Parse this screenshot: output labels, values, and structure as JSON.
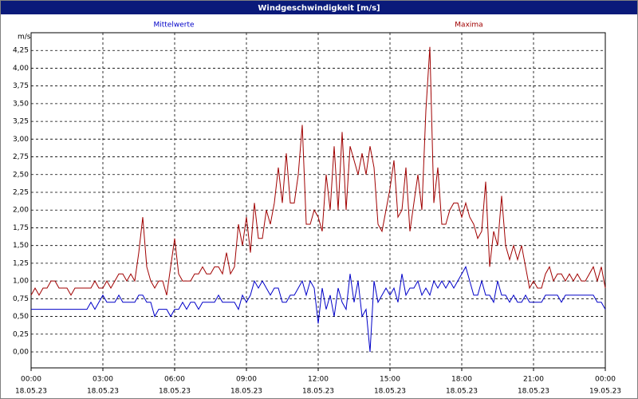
{
  "chart_data": {
    "type": "line",
    "title": "Windgeschwindigkeit [m/s]",
    "ylabel": "m/s",
    "x": [
      0,
      10,
      20,
      30,
      40,
      50,
      60,
      70,
      80,
      90,
      100,
      110,
      120,
      130,
      140,
      150,
      160,
      170,
      180,
      190,
      200,
      210,
      220,
      230,
      240,
      250,
      260,
      270,
      280,
      290,
      300,
      310,
      320,
      330,
      340,
      350,
      360,
      370,
      380,
      390,
      400,
      410,
      420,
      430,
      440,
      450,
      460,
      470,
      480,
      490,
      500,
      510,
      520,
      530,
      540,
      550,
      560,
      570,
      580,
      590,
      600,
      610,
      620,
      630,
      640,
      650,
      660,
      670,
      680,
      690,
      700,
      710,
      720,
      730,
      740,
      750,
      760,
      770,
      780,
      790,
      800,
      810,
      820,
      830,
      840,
      850,
      860,
      870,
      880,
      890,
      900,
      910,
      920,
      930,
      940,
      950,
      960,
      970,
      980,
      990,
      1000,
      1010,
      1020,
      1030,
      1040,
      1050,
      1060,
      1070,
      1080,
      1090,
      1100,
      1110,
      1120,
      1130,
      1140,
      1150,
      1160,
      1170,
      1180,
      1190,
      1200,
      1210,
      1220,
      1230,
      1240,
      1250,
      1260,
      1270,
      1280,
      1290,
      1300,
      1310,
      1320,
      1330,
      1340,
      1350,
      1360,
      1370,
      1380,
      1390,
      1400,
      1410,
      1420,
      1430,
      1440
    ],
    "series": [
      {
        "name": "Mittelwerte",
        "color": "#0000c8",
        "values": [
          0.6,
          0.6,
          0.6,
          0.6,
          0.6,
          0.6,
          0.6,
          0.6,
          0.6,
          0.6,
          0.6,
          0.6,
          0.6,
          0.6,
          0.6,
          0.7,
          0.6,
          0.7,
          0.8,
          0.7,
          0.7,
          0.7,
          0.8,
          0.7,
          0.7,
          0.7,
          0.7,
          0.8,
          0.8,
          0.7,
          0.7,
          0.5,
          0.6,
          0.6,
          0.6,
          0.5,
          0.6,
          0.6,
          0.7,
          0.6,
          0.7,
          0.7,
          0.6,
          0.7,
          0.7,
          0.7,
          0.7,
          0.8,
          0.7,
          0.7,
          0.7,
          0.7,
          0.6,
          0.8,
          0.7,
          0.8,
          1.0,
          0.9,
          1.0,
          0.9,
          0.8,
          0.9,
          0.9,
          0.7,
          0.7,
          0.8,
          0.8,
          0.9,
          1.0,
          0.8,
          1.0,
          0.9,
          0.4,
          0.9,
          0.6,
          0.8,
          0.5,
          0.9,
          0.7,
          0.6,
          1.1,
          0.7,
          1.0,
          0.5,
          0.6,
          0.0,
          1.0,
          0.7,
          0.8,
          0.9,
          0.8,
          0.9,
          0.7,
          1.1,
          0.8,
          0.9,
          0.9,
          1.0,
          0.8,
          0.9,
          0.8,
          1.0,
          0.9,
          1.0,
          0.9,
          1.0,
          0.9,
          1.0,
          1.1,
          1.2,
          1.0,
          0.8,
          0.8,
          1.0,
          0.8,
          0.8,
          0.7,
          1.0,
          0.8,
          0.8,
          0.7,
          0.8,
          0.7,
          0.7,
          0.8,
          0.7,
          0.7,
          0.7,
          0.7,
          0.8,
          0.8,
          0.8,
          0.8,
          0.7,
          0.8,
          0.8,
          0.8,
          0.8,
          0.8,
          0.8,
          0.8,
          0.8,
          0.7,
          0.7,
          0.6
        ]
      },
      {
        "name": "Maxima",
        "color": "#a00000",
        "values": [
          0.8,
          0.9,
          0.8,
          0.9,
          0.9,
          1.0,
          1.0,
          0.9,
          0.9,
          0.9,
          0.8,
          0.9,
          0.9,
          0.9,
          0.9,
          0.9,
          1.0,
          0.9,
          0.9,
          1.0,
          0.9,
          1.0,
          1.1,
          1.1,
          1.0,
          1.1,
          1.0,
          1.4,
          1.9,
          1.2,
          1.0,
          0.9,
          1.0,
          1.0,
          0.8,
          1.2,
          1.6,
          1.1,
          1.0,
          1.0,
          1.0,
          1.1,
          1.1,
          1.2,
          1.1,
          1.1,
          1.2,
          1.2,
          1.1,
          1.4,
          1.1,
          1.2,
          1.8,
          1.5,
          1.9,
          1.4,
          2.1,
          1.6,
          1.6,
          2.0,
          1.8,
          2.1,
          2.6,
          2.1,
          2.8,
          2.1,
          2.1,
          2.5,
          3.2,
          1.8,
          1.8,
          2.0,
          1.9,
          1.7,
          2.5,
          2.0,
          2.9,
          2.0,
          3.1,
          2.0,
          2.9,
          2.7,
          2.5,
          2.8,
          2.5,
          2.9,
          2.6,
          1.8,
          1.7,
          2.0,
          2.3,
          2.7,
          1.9,
          2.0,
          2.6,
          1.7,
          2.1,
          2.5,
          2.0,
          3.4,
          4.3,
          2.1,
          2.6,
          1.8,
          1.8,
          2.0,
          2.1,
          2.1,
          1.9,
          2.1,
          1.9,
          1.8,
          1.6,
          1.7,
          2.4,
          1.2,
          1.7,
          1.5,
          2.2,
          1.5,
          1.3,
          1.5,
          1.3,
          1.5,
          1.2,
          0.9,
          1.0,
          0.9,
          0.9,
          1.1,
          1.2,
          1.0,
          1.1,
          1.1,
          1.0,
          1.1,
          1.0,
          1.1,
          1.0,
          1.0,
          1.1,
          1.2,
          1.0,
          1.2,
          0.9
        ]
      }
    ],
    "xlim": [
      0,
      1440
    ],
    "xticks": [
      {
        "value": 0,
        "label": "00:00"
      },
      {
        "value": 180,
        "label": "03:00"
      },
      {
        "value": 360,
        "label": "06:00"
      },
      {
        "value": 540,
        "label": "09:00"
      },
      {
        "value": 720,
        "label": "12:00"
      },
      {
        "value": 900,
        "label": "15:00"
      },
      {
        "value": 1080,
        "label": "18:00"
      },
      {
        "value": 1260,
        "label": "21:00"
      },
      {
        "value": 1440,
        "label": "00:00"
      }
    ],
    "xtick_dates": [
      "18.05.23",
      "18.05.23",
      "18.05.23",
      "18.05.23",
      "18.05.23",
      "18.05.23",
      "18.05.23",
      "18.05.23",
      "19.05.23"
    ],
    "ylim": [
      -0.225,
      4.5
    ],
    "yticks": [
      {
        "value": 0,
        "label": "0,00"
      },
      {
        "value": 0.25,
        "label": "0,25"
      },
      {
        "value": 0.5,
        "label": "0,50"
      },
      {
        "value": 0.75,
        "label": "0,75"
      },
      {
        "value": 1,
        "label": "1,00"
      },
      {
        "value": 1.25,
        "label": "1,25"
      },
      {
        "value": 1.5,
        "label": "1,50"
      },
      {
        "value": 1.75,
        "label": "1,75"
      },
      {
        "value": 2,
        "label": "2,00"
      },
      {
        "value": 2.25,
        "label": "2,25"
      },
      {
        "value": 2.5,
        "label": "2,50"
      },
      {
        "value": 2.75,
        "label": "2,75"
      },
      {
        "value": 3,
        "label": "3,00"
      },
      {
        "value": 3.25,
        "label": "3,25"
      },
      {
        "value": 3.5,
        "label": "3,50"
      },
      {
        "value": 3.75,
        "label": "3,75"
      },
      {
        "value": 4,
        "label": "4,00"
      },
      {
        "value": 4.25,
        "label": "4,25"
      }
    ],
    "grid": true
  }
}
